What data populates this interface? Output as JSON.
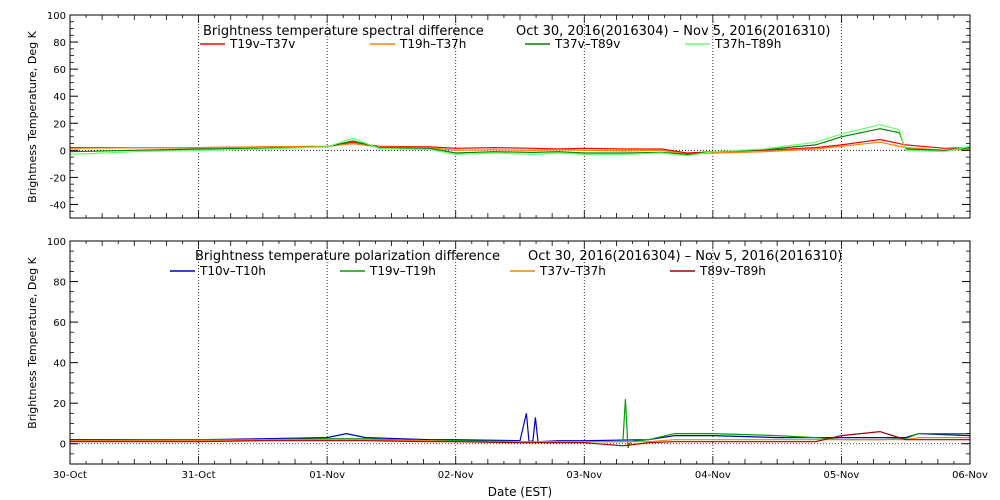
{
  "chart_data": [
    {
      "type": "line",
      "title": "Brightness temperature spectral difference",
      "period": "Oct 30, 2016(2016304) – Nov  5, 2016(2016310)",
      "ylabel": "Brightness Temperature, Deg K",
      "xlabel": "",
      "ylim": [
        -50,
        100
      ],
      "yticks": [
        -40,
        -20,
        0,
        20,
        40,
        60,
        80,
        100
      ],
      "xlim": [
        0,
        7
      ],
      "xtick_labels": [
        "30-Oct",
        "31-Oct",
        "01-Nov",
        "02-Nov",
        "03-Nov",
        "04-Nov",
        "05-Nov",
        "06-Nov"
      ],
      "grid": "vertical dotted at day boundaries, horizontal dotted at zero",
      "legend": "top, two rows inside plot",
      "series": [
        {
          "name": "T19v–T37v",
          "color": "#ff0000",
          "points": [
            [
              0,
              2
            ],
            [
              0.5,
              2
            ],
            [
              1,
              2
            ],
            [
              1.5,
              2.5
            ],
            [
              2,
              3
            ],
            [
              2.2,
              6
            ],
            [
              2.4,
              3
            ],
            [
              2.8,
              2.5
            ],
            [
              3,
              1.5
            ],
            [
              3.3,
              2
            ],
            [
              3.6,
              1.5
            ],
            [
              3.8,
              1
            ],
            [
              4,
              1.5
            ],
            [
              4.3,
              1
            ],
            [
              4.6,
              1
            ],
            [
              4.8,
              -2
            ],
            [
              5,
              -1
            ],
            [
              5.4,
              0
            ],
            [
              5.8,
              2
            ],
            [
              6,
              4
            ],
            [
              6.3,
              8
            ],
            [
              6.5,
              4
            ],
            [
              6.8,
              1.5
            ],
            [
              7,
              2
            ]
          ]
        },
        {
          "name": "T19h–T37h",
          "color": "#ff8000",
          "points": [
            [
              0,
              1.5
            ],
            [
              0.5,
              2
            ],
            [
              1,
              2
            ],
            [
              1.5,
              2.5
            ],
            [
              2,
              3
            ],
            [
              2.2,
              5
            ],
            [
              2.4,
              2.5
            ],
            [
              2.8,
              2
            ],
            [
              3,
              0
            ],
            [
              3.3,
              0.5
            ],
            [
              3.6,
              0
            ],
            [
              3.8,
              0.5
            ],
            [
              4,
              0
            ],
            [
              4.3,
              -0.5
            ],
            [
              4.6,
              0
            ],
            [
              4.8,
              -3
            ],
            [
              5,
              -2
            ],
            [
              5.4,
              -1
            ],
            [
              5.8,
              1
            ],
            [
              6,
              3
            ],
            [
              6.3,
              6
            ],
            [
              6.5,
              2
            ],
            [
              6.8,
              0
            ],
            [
              7,
              1
            ]
          ]
        },
        {
          "name": "T37v–T89v",
          "color": "#008000",
          "points": [
            [
              0,
              -1
            ],
            [
              0.5,
              0
            ],
            [
              1,
              1
            ],
            [
              1.5,
              1.5
            ],
            [
              2,
              2.5
            ],
            [
              2.2,
              7
            ],
            [
              2.4,
              2
            ],
            [
              2.8,
              1.5
            ],
            [
              3,
              -2
            ],
            [
              3.3,
              -1
            ],
            [
              3.6,
              -1.5
            ],
            [
              3.8,
              -1
            ],
            [
              4,
              -2
            ],
            [
              4.3,
              -2
            ],
            [
              4.6,
              -1.5
            ],
            [
              4.8,
              -3
            ],
            [
              5,
              -1
            ],
            [
              5.4,
              0.5
            ],
            [
              5.8,
              4
            ],
            [
              6,
              10
            ],
            [
              6.3,
              16
            ],
            [
              6.45,
              13
            ],
            [
              6.5,
              1
            ],
            [
              6.8,
              0
            ],
            [
              7,
              2
            ]
          ]
        },
        {
          "name": "T37h–T89h",
          "color": "#66ff66",
          "points": [
            [
              0,
              -3
            ],
            [
              0.5,
              -1
            ],
            [
              1,
              0
            ],
            [
              1.5,
              1
            ],
            [
              2,
              2.5
            ],
            [
              2.2,
              9
            ],
            [
              2.4,
              1.5
            ],
            [
              2.8,
              0.5
            ],
            [
              3,
              -3
            ],
            [
              3.3,
              -2
            ],
            [
              3.6,
              -3
            ],
            [
              3.8,
              -2
            ],
            [
              4,
              -3
            ],
            [
              4.3,
              -3
            ],
            [
              4.6,
              -2
            ],
            [
              4.8,
              -4
            ],
            [
              5,
              -1
            ],
            [
              5.4,
              1
            ],
            [
              5.8,
              6
            ],
            [
              6,
              12
            ],
            [
              6.3,
              19
            ],
            [
              6.45,
              15
            ],
            [
              6.5,
              0
            ],
            [
              6.8,
              -1
            ],
            [
              7,
              3
            ]
          ]
        }
      ]
    },
    {
      "type": "line",
      "title": "Brightness temperature polarization difference",
      "period": "Oct 30, 2016(2016304) – Nov  5, 2016(2016310)",
      "ylabel": "Brightness Temperature, Deg K",
      "xlabel": "Date (EST)",
      "ylim": [
        -10,
        100
      ],
      "yticks": [
        0,
        20,
        40,
        60,
        80,
        100
      ],
      "xlim": [
        0,
        7
      ],
      "xtick_labels": [
        "30-Oct",
        "31-Oct",
        "01-Nov",
        "02-Nov",
        "03-Nov",
        "04-Nov",
        "05-Nov",
        "06-Nov"
      ],
      "grid": "vertical dotted at day boundaries, horizontal dotted at zero",
      "legend": "top, one row inside plot",
      "series": [
        {
          "name": "T10v–T10h",
          "color": "#0000c0",
          "points": [
            [
              0,
              2
            ],
            [
              1,
              2
            ],
            [
              1.5,
              2.5
            ],
            [
              2,
              3
            ],
            [
              2.15,
              5
            ],
            [
              2.3,
              3
            ],
            [
              2.8,
              2
            ],
            [
              3,
              2
            ],
            [
              3.5,
              1.5
            ],
            [
              3.55,
              15
            ],
            [
              3.57,
              1
            ],
            [
              3.6,
              1.5
            ],
            [
              3.62,
              13
            ],
            [
              3.64,
              1
            ],
            [
              3.8,
              1.5
            ],
            [
              4,
              1.5
            ],
            [
              4.5,
              2
            ],
            [
              4.7,
              4
            ],
            [
              5,
              4
            ],
            [
              5.5,
              3
            ],
            [
              5.8,
              3
            ],
            [
              6,
              3
            ],
            [
              6.3,
              3
            ],
            [
              6.5,
              3
            ],
            [
              6.6,
              5
            ],
            [
              7,
              4
            ]
          ]
        },
        {
          "name": "T19v–T19h",
          "color": "#00a000",
          "points": [
            [
              0,
              1.5
            ],
            [
              1,
              2
            ],
            [
              1.5,
              2
            ],
            [
              2,
              2.5
            ],
            [
              2.3,
              2.5
            ],
            [
              2.8,
              1.5
            ],
            [
              3,
              1.5
            ],
            [
              3.5,
              1
            ],
            [
              4,
              1
            ],
            [
              4.3,
              1
            ],
            [
              4.32,
              22
            ],
            [
              4.34,
              -2
            ],
            [
              4.36,
              1
            ],
            [
              4.5,
              2
            ],
            [
              4.7,
              5
            ],
            [
              5,
              5
            ],
            [
              5.5,
              4
            ],
            [
              5.8,
              3
            ],
            [
              6,
              2
            ],
            [
              6.3,
              2
            ],
            [
              6.5,
              2.5
            ],
            [
              6.6,
              5
            ],
            [
              7,
              5
            ]
          ]
        },
        {
          "name": "T37v–T37h",
          "color": "#ff8000",
          "points": [
            [
              0,
              1.5
            ],
            [
              1,
              1.5
            ],
            [
              1.5,
              2
            ],
            [
              2,
              2
            ],
            [
              2.3,
              2
            ],
            [
              2.8,
              1.5
            ],
            [
              3,
              1
            ],
            [
              3.5,
              1
            ],
            [
              4,
              1
            ],
            [
              4.5,
              1
            ],
            [
              4.7,
              2
            ],
            [
              5,
              2
            ],
            [
              5.5,
              2
            ],
            [
              5.8,
              2
            ],
            [
              6,
              2
            ],
            [
              6.3,
              2
            ],
            [
              6.5,
              2
            ],
            [
              6.6,
              3
            ],
            [
              7,
              3
            ]
          ]
        },
        {
          "name": "T89v–T89h",
          "color": "#a00000",
          "points": [
            [
              0,
              1
            ],
            [
              1,
              1
            ],
            [
              1.5,
              1.5
            ],
            [
              2,
              1.5
            ],
            [
              2.3,
              1.5
            ],
            [
              2.8,
              1
            ],
            [
              3,
              1
            ],
            [
              3.5,
              0.5
            ],
            [
              4,
              0.5
            ],
            [
              4.3,
              -1
            ],
            [
              4.5,
              0.5
            ],
            [
              4.7,
              1
            ],
            [
              5,
              1
            ],
            [
              5.5,
              1
            ],
            [
              5.8,
              1
            ],
            [
              6,
              4
            ],
            [
              6.3,
              6
            ],
            [
              6.5,
              2
            ],
            [
              6.6,
              2
            ],
            [
              7,
              2
            ]
          ]
        }
      ]
    }
  ]
}
